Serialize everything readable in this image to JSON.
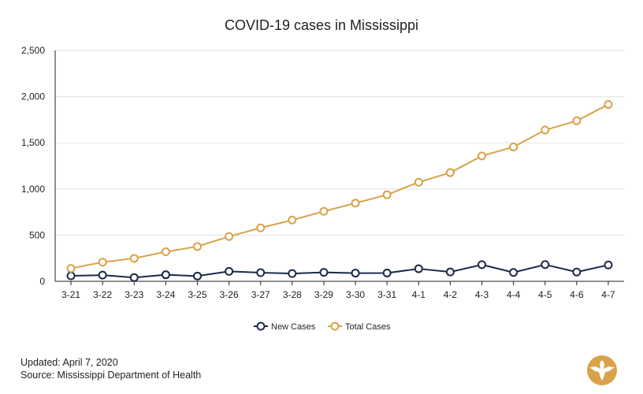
{
  "chart_data": {
    "type": "line",
    "title": "COVID-19 cases in Mississippi",
    "categories": [
      "3-21",
      "3-22",
      "3-23",
      "3-24",
      "3-25",
      "3-26",
      "3-27",
      "3-28",
      "3-29",
      "3-30",
      "3-31",
      "4-1",
      "4-2",
      "4-3",
      "4-4",
      "4-5",
      "4-6",
      "4-7"
    ],
    "series": [
      {
        "name": "New Cases",
        "color": "#1b2a47",
        "values": [
          60,
          67,
          41,
          71,
          57,
          108,
          94,
          84,
          97,
          89,
          90,
          136,
          101,
          180,
          96,
          181,
          100,
          177
        ]
      },
      {
        "name": "Total Cases",
        "color": "#d9a24a",
        "values": [
          140,
          207,
          249,
          320,
          377,
          485,
          579,
          663,
          758,
          847,
          937,
          1073,
          1177,
          1358,
          1455,
          1638,
          1738,
          1915
        ]
      }
    ],
    "yticks": [
      "0",
      "500",
      "1,000",
      "1,500",
      "2,000",
      "2,500"
    ],
    "ylim": [
      0,
      2500
    ],
    "grid": true,
    "legend": "bottom-center"
  },
  "footer": {
    "updated": "Updated: April 7, 2020",
    "source": "Source: Mississippi Department of Health"
  },
  "logo": {
    "icon": "mississippi-seal-eagle-icon",
    "color": "#d9a24a"
  }
}
